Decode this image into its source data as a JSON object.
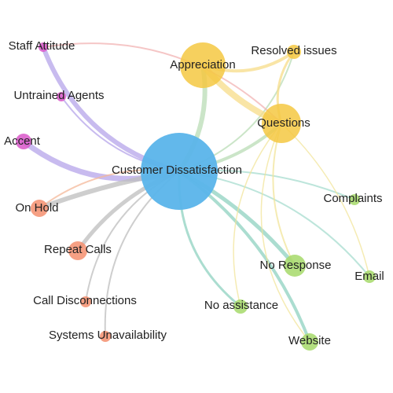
{
  "center": {
    "label": "Customer Dissatisfaction",
    "color": "#5ab4ea"
  },
  "nodes": [
    {
      "id": "appreciation",
      "label": "Appreciation",
      "color": "#f5c842"
    },
    {
      "id": "questions",
      "label": "Questions",
      "color": "#f5c842"
    },
    {
      "id": "resolved",
      "label": "Resolved issues",
      "color": "#f5c842"
    },
    {
      "id": "staff",
      "label": "Staff Attitude",
      "color": "#d957c9"
    },
    {
      "id": "untrained",
      "label": "Untrained Agents",
      "color": "#d957c9"
    },
    {
      "id": "accent",
      "label": "Accent",
      "color": "#d957c9"
    },
    {
      "id": "onhold",
      "label": "On Hold",
      "color": "#f48f6e"
    },
    {
      "id": "repeat",
      "label": "Repeat Calls",
      "color": "#f48f6e"
    },
    {
      "id": "disconnect",
      "label": "Call Disconnections",
      "color": "#f48f6e"
    },
    {
      "id": "systems",
      "label": "Systems Unavailability",
      "color": "#f48f6e"
    },
    {
      "id": "complaints",
      "label": "Complaints",
      "color": "#a6d96a"
    },
    {
      "id": "noresponse",
      "label": "No Response",
      "color": "#a6d96a"
    },
    {
      "id": "email",
      "label": "Email",
      "color": "#a6d96a"
    },
    {
      "id": "noassist",
      "label": "No assistance",
      "color": "#a6d96a"
    },
    {
      "id": "website",
      "label": "Website",
      "color": "#a6d96a"
    }
  ],
  "edges": [
    {
      "from": "center",
      "to": "staff",
      "color": "#b6a4ea",
      "weight": 6
    },
    {
      "from": "center",
      "to": "untrained",
      "color": "#b6a4ea",
      "weight": 2
    },
    {
      "from": "center",
      "to": "accent",
      "color": "#b6a4ea",
      "weight": 7
    },
    {
      "from": "center",
      "to": "onhold",
      "color": "#f4b89a",
      "weight": 2
    },
    {
      "from": "center",
      "to": "repeat",
      "color": "#bdbdbd",
      "weight": 5
    },
    {
      "from": "center",
      "to": "disconnect",
      "color": "#bdbdbd",
      "weight": 2
    },
    {
      "from": "center",
      "to": "systems",
      "color": "#bdbdbd",
      "weight": 2
    },
    {
      "from": "center",
      "to": "onhold",
      "color": "#bdbdbd",
      "weight": 6
    },
    {
      "from": "center",
      "to": "appreciation",
      "color": "#b9dcb5",
      "weight": 6
    },
    {
      "from": "center",
      "to": "questions",
      "color": "#b9dcb5",
      "weight": 4
    },
    {
      "from": "center",
      "to": "resolved",
      "color": "#b9dcb5",
      "weight": 2
    },
    {
      "from": "center",
      "to": "complaints",
      "color": "#a7dccf",
      "weight": 2
    },
    {
      "from": "center",
      "to": "noresponse",
      "color": "#8fd1c0",
      "weight": 5
    },
    {
      "from": "center",
      "to": "email",
      "color": "#a7dccf",
      "weight": 2
    },
    {
      "from": "center",
      "to": "noassist",
      "color": "#8fd1c0",
      "weight": 3
    },
    {
      "from": "center",
      "to": "website",
      "color": "#8fd1c0",
      "weight": 4
    },
    {
      "from": "appreciation",
      "to": "questions",
      "color": "#f7dc88",
      "weight": 8
    },
    {
      "from": "appreciation",
      "to": "resolved",
      "color": "#f7dc88",
      "weight": 4
    },
    {
      "from": "questions",
      "to": "resolved",
      "color": "#f7dc88",
      "weight": 3
    },
    {
      "from": "questions",
      "to": "noresponse",
      "color": "#f2e49a",
      "weight": 2
    },
    {
      "from": "questions",
      "to": "email",
      "color": "#f2e49a",
      "weight": 1.5
    },
    {
      "from": "questions",
      "to": "noassist",
      "color": "#f2e49a",
      "weight": 1.5
    },
    {
      "from": "questions",
      "to": "website",
      "color": "#f2e49a",
      "weight": 1.5
    },
    {
      "from": "staff",
      "to": "questions",
      "color": "#f2b3b3",
      "weight": 2
    }
  ]
}
